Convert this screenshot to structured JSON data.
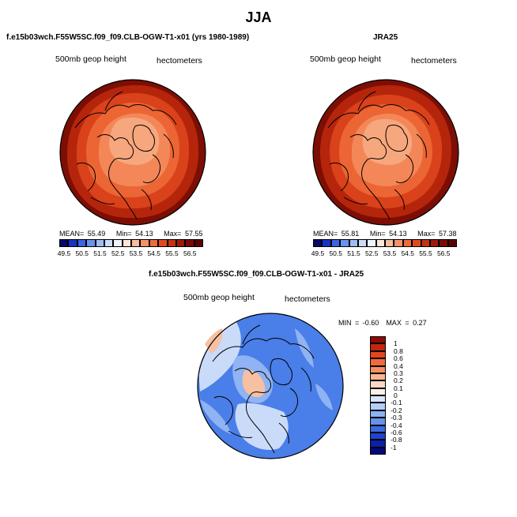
{
  "season": "JJA",
  "units": "hectometers",
  "field": "500mb geop height",
  "panels": {
    "model": {
      "title": "f.e15b03wch.F55W5SC.f09_f09.CLB-OGW-T1-x01 (yrs 1980-1989)",
      "field": "500mb geop height",
      "units": "hectometers",
      "mean_label": "MEAN=",
      "mean": "55.49",
      "min_label": "Min=",
      "min": "54.13",
      "max_label": "Max=",
      "max": "57.55"
    },
    "obs": {
      "title": "JRA25",
      "field": "500mb geop height",
      "units": "hectometers",
      "mean_label": "MEAN=",
      "mean": "55.81",
      "min_label": "Min=",
      "min": "54.13",
      "max_label": "Max=",
      "max": "57.38"
    },
    "diff": {
      "title": "f.e15b03wch.F55W5SC.f09_f09.CLB-OGW-T1-x01 - JRA25",
      "field": "500mb geop height",
      "units": "hectometers",
      "min_label": "MIN =",
      "min": "-0.60",
      "max_label": "MAX =",
      "max": "0.27"
    }
  },
  "colorbars": {
    "height": {
      "ticks": [
        "49.5",
        "50.5",
        "51.5",
        "52.5",
        "53.5",
        "54.5",
        "55.5",
        "56.5"
      ],
      "colors": [
        "#08086b",
        "#1633c4",
        "#3a64e4",
        "#6a92ef",
        "#9dbdf5",
        "#cbdcfa",
        "#eef3fd",
        "#fde6da",
        "#f9bc9f",
        "#f59268",
        "#ef6a3d",
        "#e14a1f",
        "#c43210",
        "#9e1a08",
        "#7a0a04",
        "#5c0202"
      ]
    },
    "diff": {
      "ticks": [
        "1",
        "0.8",
        "0.6",
        "0.4",
        "0.3",
        "0.2",
        "0.1",
        "0",
        "-0.1",
        "-0.2",
        "-0.3",
        "-0.4",
        "-0.6",
        "-0.8",
        "-1"
      ],
      "colors": [
        "#8b0d05",
        "#c42510",
        "#e2461f",
        "#ef6a3d",
        "#f48f62",
        "#f8b592",
        "#fcd8c4",
        "#fdf0e8",
        "#d9e6fb",
        "#b5cef7",
        "#8eb2f2",
        "#6692ec",
        "#3c6ae3",
        "#1d45cc",
        "#0a20a6",
        "#04097a"
      ]
    }
  },
  "colors": {
    "ring_outer": "#7d0e04",
    "ring_2": "#b5250c",
    "ring_3": "#d9421a",
    "ring_4": "#ec6534",
    "ring_5": "#f38757",
    "ring_6": "#f7a77d",
    "diff_base": "#4a7ee8",
    "diff_light": "#8fb3f3",
    "diff_pale": "#c9dbf9",
    "diff_warm": "#f7c0a2",
    "coast": "#000000"
  }
}
